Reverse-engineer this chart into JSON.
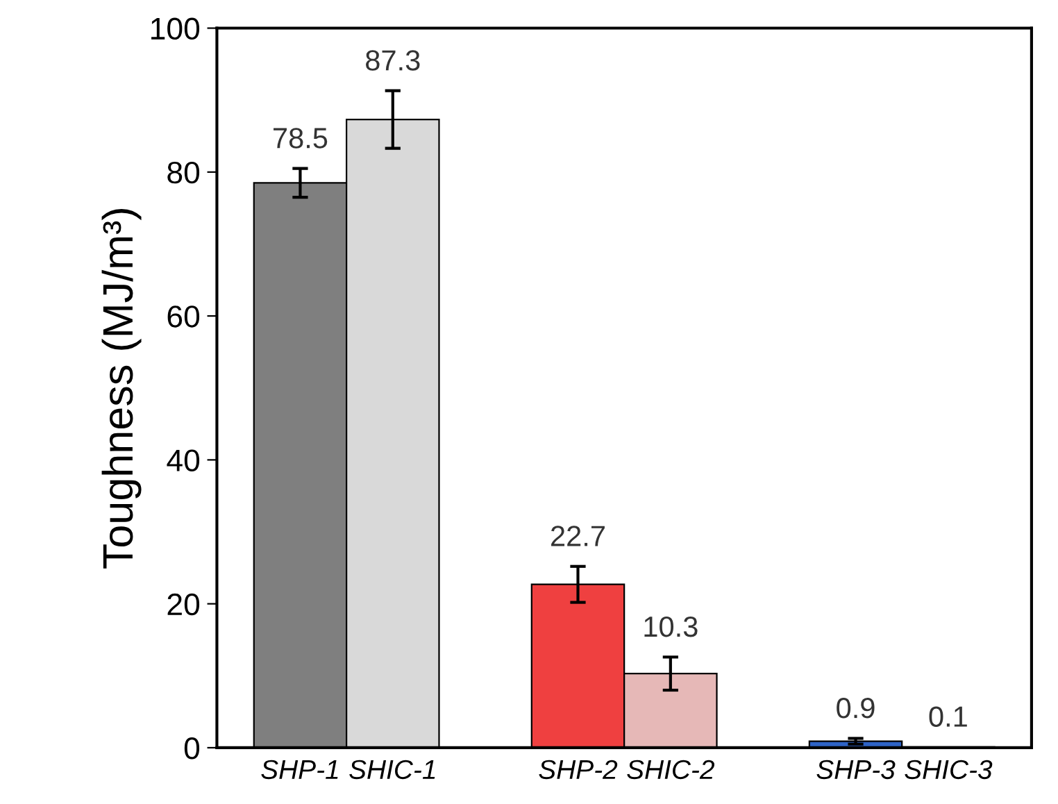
{
  "chart_data": {
    "type": "bar",
    "ylabel": "Toughness (MJ/m³)",
    "categories": [
      "SHP-1",
      "SHIC-1",
      null,
      "SHP-2",
      "SHIC-2",
      null,
      "SHP-3",
      "SHIC-3"
    ],
    "values": [
      78.5,
      87.3,
      null,
      22.7,
      10.3,
      null,
      0.9,
      0.1
    ],
    "colors": [
      "#7f7f7f",
      "#d9d9d9",
      null,
      "#ef4040",
      "#e6b8b7",
      null,
      "#2e63c6",
      "#a9c4eb"
    ],
    "errors": [
      2,
      4,
      null,
      2.5,
      2.3,
      null,
      0.4,
      null
    ],
    "data_labels": true,
    "ylim": [
      0,
      100
    ],
    "yticks": [
      0,
      20,
      40,
      60,
      80,
      100
    ],
    "grid": false
  }
}
